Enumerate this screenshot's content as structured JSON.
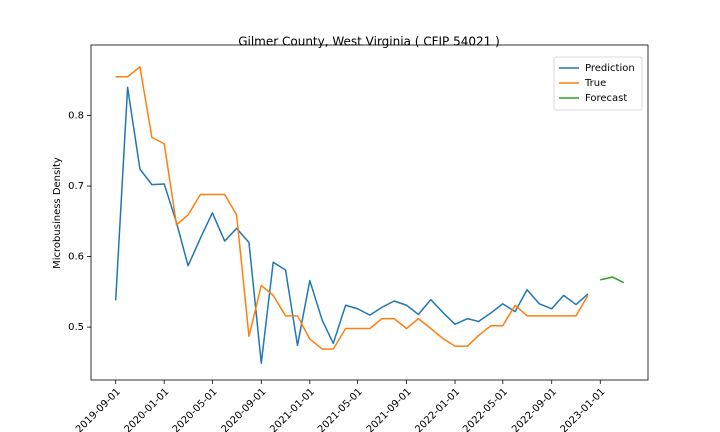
{
  "chart_data": {
    "type": "line",
    "title": "Gilmer County, West Virginia ( CFIP 54021 )",
    "y_label": "Microbusiness Density",
    "x": [
      "2019-09-01",
      "2019-10-01",
      "2019-11-01",
      "2019-12-01",
      "2020-01-01",
      "2020-02-01",
      "2020-03-01",
      "2020-04-01",
      "2020-05-01",
      "2020-06-01",
      "2020-07-01",
      "2020-08-01",
      "2020-09-01",
      "2020-10-01",
      "2020-11-01",
      "2020-12-01",
      "2021-01-01",
      "2021-02-01",
      "2021-03-01",
      "2021-04-01",
      "2021-05-01",
      "2021-06-01",
      "2021-07-01",
      "2021-08-01",
      "2021-09-01",
      "2021-10-01",
      "2021-11-01",
      "2021-12-01",
      "2022-01-01",
      "2022-02-01",
      "2022-03-01",
      "2022-04-01",
      "2022-05-01",
      "2022-06-01",
      "2022-07-01",
      "2022-08-01",
      "2022-09-01",
      "2022-10-01",
      "2022-11-01",
      "2022-12-01",
      "2023-01-01",
      "2023-02-01",
      "2023-03-01"
    ],
    "series": [
      {
        "name": "Prediction",
        "color": "#1f77b4",
        "values": [
          0.538,
          0.84,
          0.724,
          0.702,
          0.703,
          0.648,
          0.587,
          0.626,
          0.662,
          0.622,
          0.64,
          0.62,
          0.449,
          0.592,
          0.581,
          0.474,
          0.566,
          0.51,
          0.477,
          0.531,
          0.526,
          0.517,
          0.528,
          0.537,
          0.531,
          0.518,
          0.539,
          0.521,
          0.504,
          0.512,
          0.508,
          0.52,
          0.533,
          0.522,
          0.553,
          0.533,
          0.526,
          0.545,
          0.532,
          0.547,
          null,
          null,
          null
        ]
      },
      {
        "name": "True",
        "color": "#ff7f0e",
        "values": [
          0.855,
          0.855,
          0.869,
          0.769,
          0.76,
          0.645,
          0.659,
          0.688,
          0.688,
          0.688,
          0.659,
          0.487,
          0.559,
          0.545,
          0.516,
          0.516,
          0.483,
          0.469,
          0.469,
          0.498,
          0.498,
          0.498,
          0.512,
          0.512,
          0.498,
          0.512,
          0.498,
          0.484,
          0.473,
          0.473,
          0.488,
          0.502,
          0.502,
          0.531,
          0.516,
          0.516,
          0.516,
          0.516,
          0.516,
          0.545,
          null,
          null,
          null
        ]
      },
      {
        "name": "Forecast",
        "color": "#2ca02c",
        "values": [
          null,
          null,
          null,
          null,
          null,
          null,
          null,
          null,
          null,
          null,
          null,
          null,
          null,
          null,
          null,
          null,
          null,
          null,
          null,
          null,
          null,
          null,
          null,
          null,
          null,
          null,
          null,
          null,
          null,
          null,
          null,
          null,
          null,
          null,
          null,
          null,
          null,
          null,
          null,
          null,
          0.567,
          0.571,
          0.563
        ]
      }
    ],
    "xlim": [
      "2019-07-01",
      "2023-05-01"
    ],
    "xticks": [
      "2019-09-01",
      "2020-01-01",
      "2020-05-01",
      "2020-09-01",
      "2021-01-01",
      "2021-05-01",
      "2021-09-01",
      "2022-01-01",
      "2022-05-01",
      "2022-09-01",
      "2023-01-01"
    ],
    "ylim": [
      0.425,
      0.9
    ],
    "yticks": [
      0.5,
      0.6,
      0.7,
      0.8
    ],
    "grid": false,
    "legend": "upper-right"
  }
}
